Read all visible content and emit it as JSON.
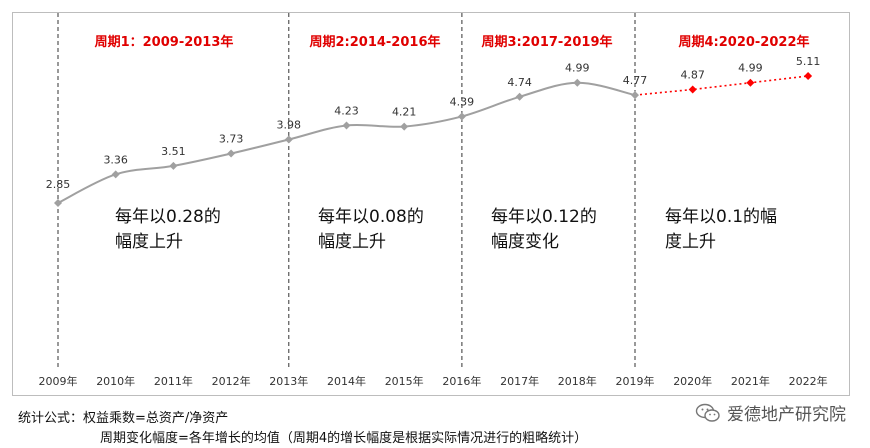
{
  "chart_data": {
    "type": "line",
    "categories": [
      "2009年",
      "2010年",
      "2011年",
      "2012年",
      "2013年",
      "2014年",
      "2015年",
      "2016年",
      "2017年",
      "2018年",
      "2019年",
      "2020年",
      "2021年",
      "2022年"
    ],
    "series": [
      {
        "values": [
          2.85,
          3.36,
          3.51,
          3.73,
          3.98,
          4.23,
          4.21,
          4.39,
          4.74,
          4.99,
          4.77,
          null,
          null,
          null
        ],
        "color": "#a0a0a0",
        "style": "solid-smooth"
      },
      {
        "values": [
          null,
          null,
          null,
          null,
          null,
          null,
          null,
          null,
          null,
          null,
          4.77,
          4.87,
          4.99,
          5.11
        ],
        "color": "#ff0000",
        "style": "dotted"
      }
    ],
    "data_labels": [
      "2.85",
      "3.36",
      "3.51",
      "3.73",
      "3.98",
      "4.23",
      "4.21",
      "4.39",
      "4.74",
      "4.99",
      "4.77",
      "4.87",
      "4.99",
      "5.11"
    ],
    "periods": [
      {
        "title": "周期1：2009-2013年",
        "desc_line1": "每年以0.28的",
        "desc_line2": "幅度上升"
      },
      {
        "title": "周期2:2014-2016年",
        "desc_line1": "每年以0.08的",
        "desc_line2": "幅度上升"
      },
      {
        "title": "周期3:2017-2019年",
        "desc_line1": "每年以0.12的",
        "desc_line2": "幅度变化"
      },
      {
        "title": "周期4:2020-2022年",
        "desc_line1": "每年以0.1的幅",
        "desc_line2": "度上升"
      }
    ],
    "grid": false,
    "legend": "none"
  },
  "colors": {
    "period_title": "#e00000",
    "history_line": "#a0a0a0",
    "forecast_line": "#ff0000"
  },
  "footer": {
    "line1": "统计公式：权益乘数=总资产/净资产",
    "line2": "周期变化幅度=各年增长的均值（周期4的增长幅度是根据实际情况进行的粗略统计）",
    "brand": "爱德地产研究院",
    "brand_icon": "wechat-icon"
  }
}
